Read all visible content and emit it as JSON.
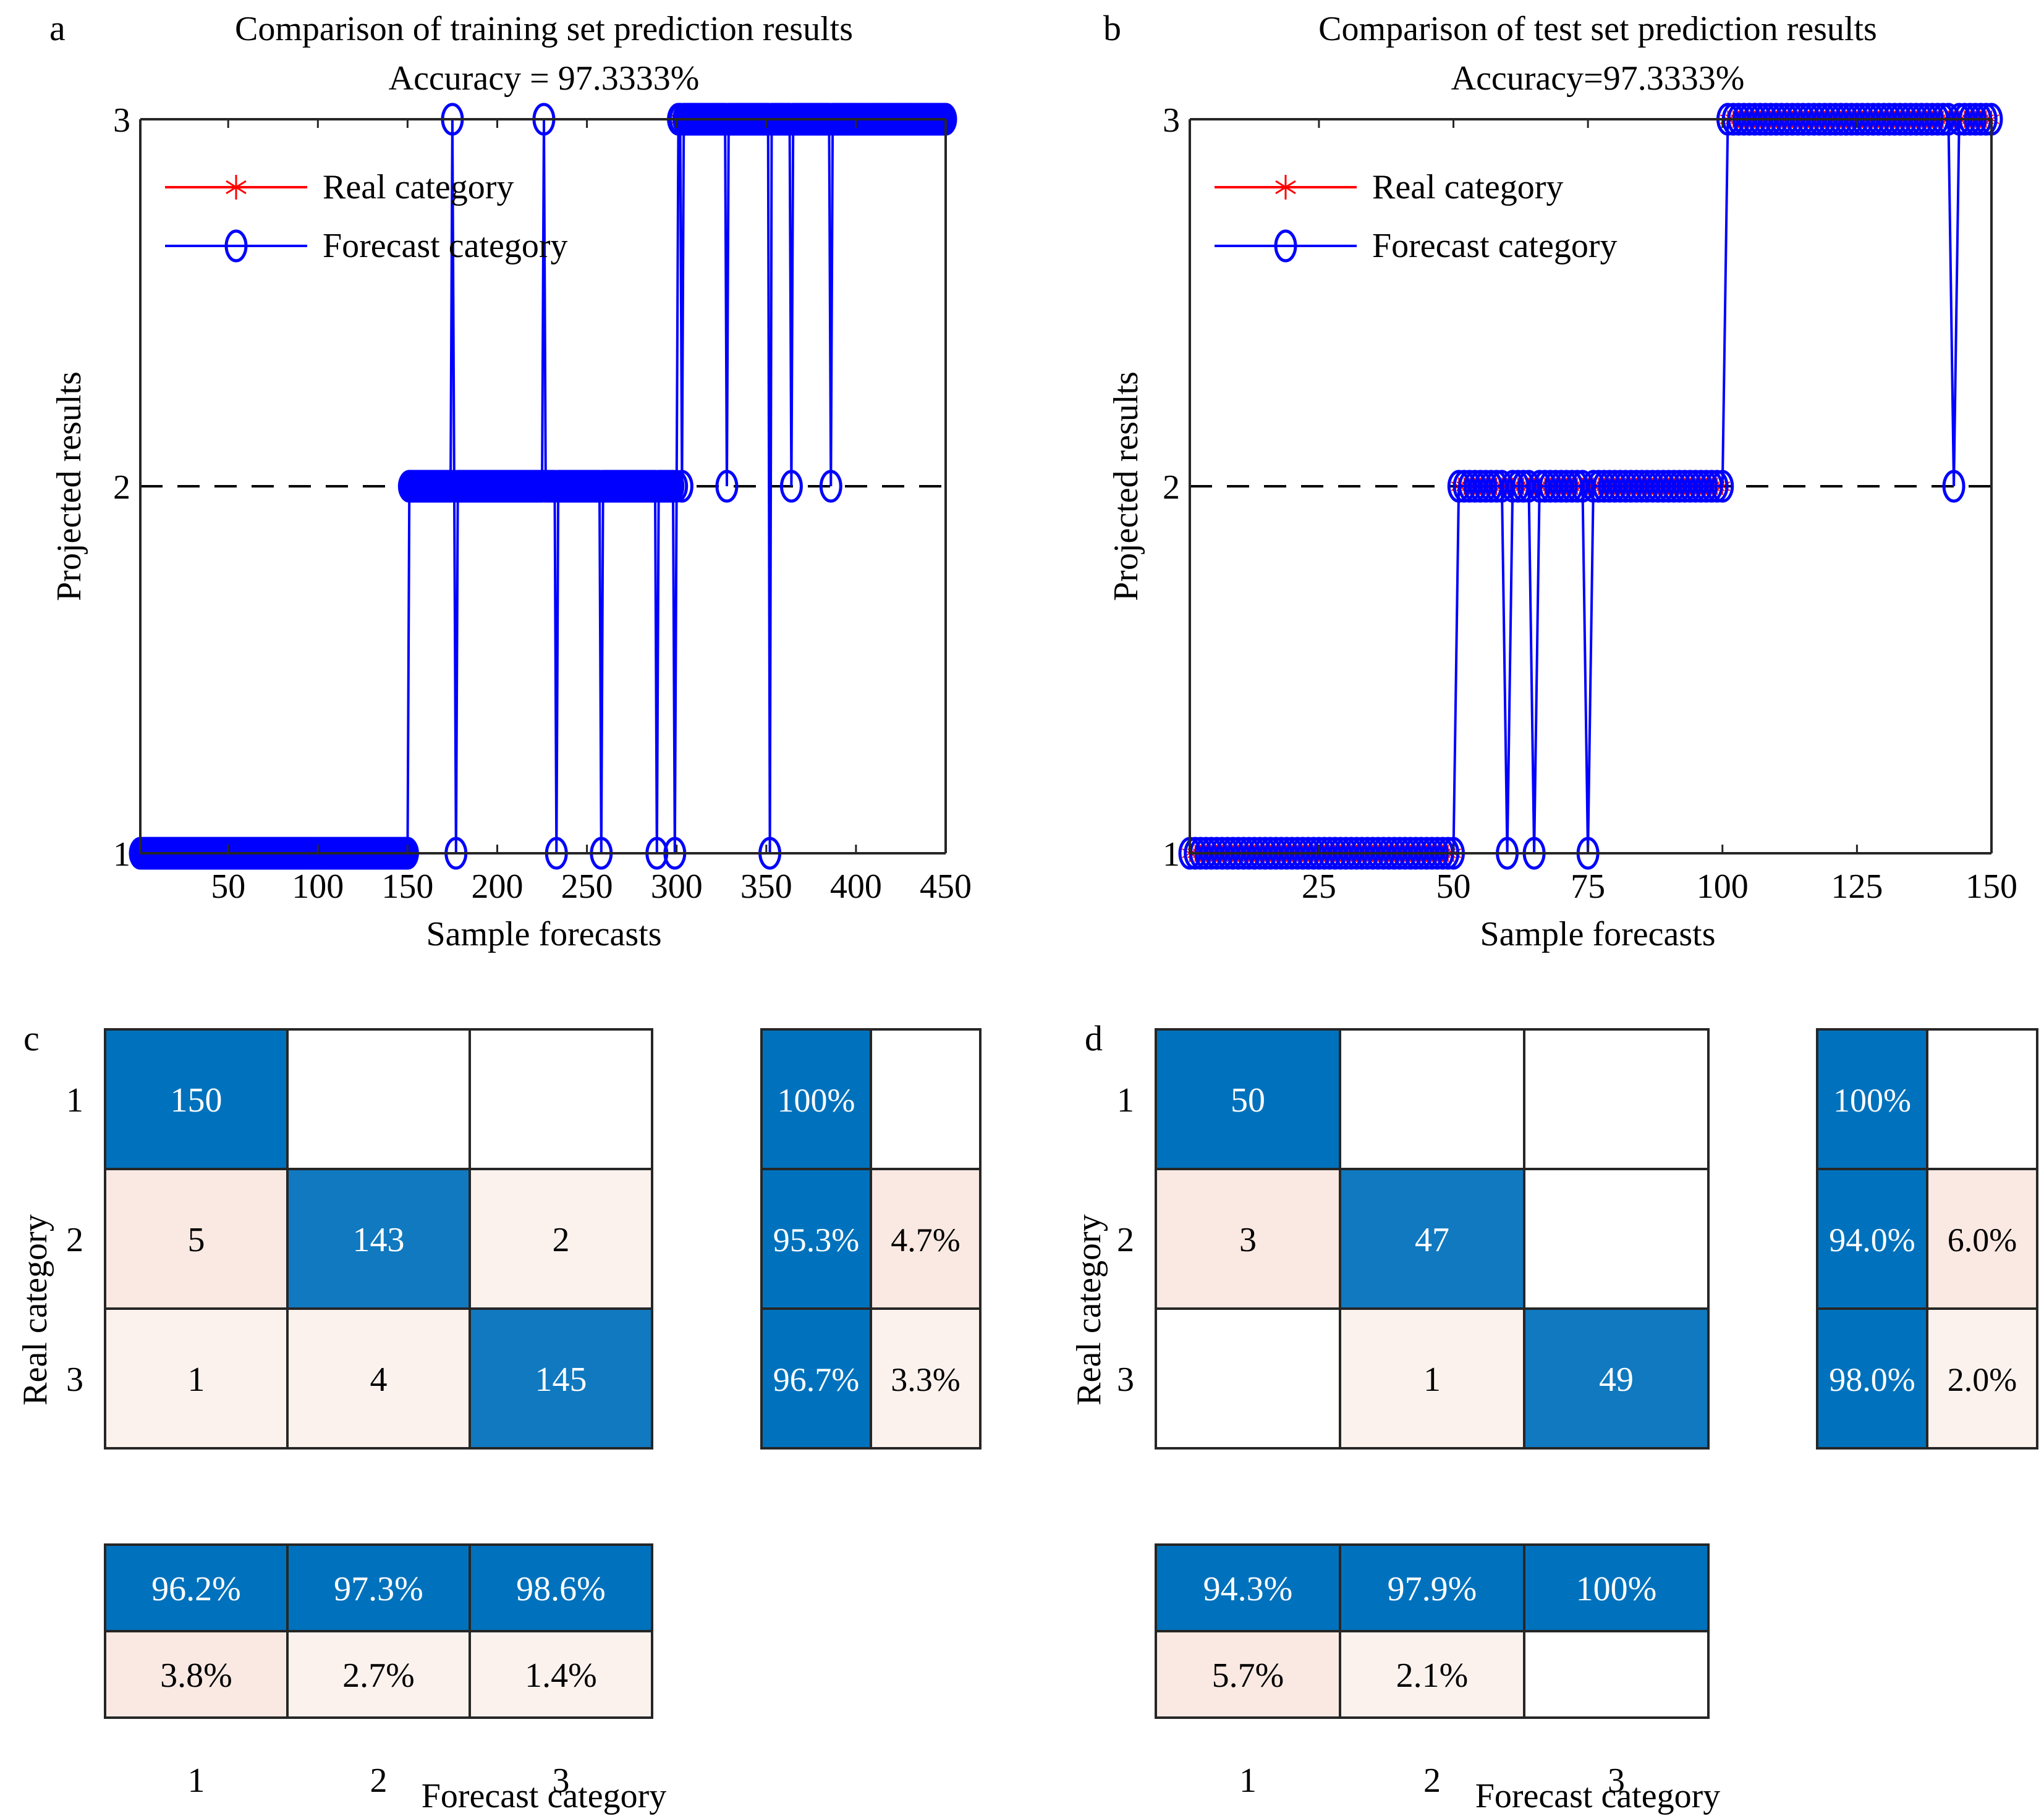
{
  "chart_data": [
    {
      "panel": "a",
      "type": "line",
      "title": "Comparison of training set prediction results",
      "subtitle": "Accuracy = 97.3333%",
      "xlabel": "Sample forecasts",
      "ylabel": "Projected results",
      "xlim": [
        1,
        450
      ],
      "ylim": [
        1,
        3
      ],
      "xticks": [
        50,
        100,
        150,
        200,
        250,
        300,
        350,
        400,
        450
      ],
      "yticks": [
        1,
        2,
        3
      ],
      "reference_line": {
        "y": 2,
        "style": "dashed",
        "color": "#000000"
      },
      "legend": {
        "placement": "top-left",
        "entries": [
          "Real category",
          "Forecast category"
        ]
      },
      "series": [
        {
          "name": "Real category",
          "color": "#ff0000",
          "marker": "asterisk",
          "segments": [
            {
              "from": 1,
              "to": 150,
              "value": 1
            },
            {
              "from": 151,
              "to": 300,
              "value": 2
            },
            {
              "from": 301,
              "to": 450,
              "value": 3
            }
          ]
        },
        {
          "name": "Forecast category",
          "color": "#0000ff",
          "marker": "circle",
          "segments": [
            {
              "from": 1,
              "to": 150,
              "value": 1
            },
            {
              "from": 151,
              "to": 300,
              "value": 2
            },
            {
              "from": 301,
              "to": 450,
              "value": 3
            }
          ],
          "misclassified": [
            {
              "x": 175,
              "value": 3
            },
            {
              "x": 226,
              "value": 3
            },
            {
              "x": 177,
              "value": 1
            },
            {
              "x": 233,
              "value": 1
            },
            {
              "x": 258,
              "value": 1
            },
            {
              "x": 289,
              "value": 1
            },
            {
              "x": 299,
              "value": 1
            },
            {
              "x": 352,
              "value": 1
            },
            {
              "x": 303,
              "value": 2
            },
            {
              "x": 328,
              "value": 2
            },
            {
              "x": 364,
              "value": 2
            },
            {
              "x": 386,
              "value": 2
            }
          ]
        }
      ]
    },
    {
      "panel": "b",
      "type": "line",
      "title": "Comparison of test set prediction results",
      "subtitle": "Accuracy=97.3333%",
      "xlabel": "Sample forecasts",
      "ylabel": "Projected results",
      "xlim": [
        1,
        150
      ],
      "ylim": [
        1,
        3
      ],
      "xticks": [
        25,
        50,
        75,
        100,
        125,
        150
      ],
      "yticks": [
        1,
        2,
        3
      ],
      "reference_line": {
        "y": 2,
        "style": "dashed",
        "color": "#000000"
      },
      "legend": {
        "placement": "top-left",
        "entries": [
          "Real category",
          "Forecast category"
        ]
      },
      "series": [
        {
          "name": "Real category",
          "color": "#ff0000",
          "marker": "asterisk",
          "segments": [
            {
              "from": 1,
              "to": 50,
              "value": 1
            },
            {
              "from": 51,
              "to": 100,
              "value": 2
            },
            {
              "from": 101,
              "to": 150,
              "value": 3
            }
          ]
        },
        {
          "name": "Forecast category",
          "color": "#0000ff",
          "marker": "circle",
          "segments": [
            {
              "from": 1,
              "to": 50,
              "value": 1
            },
            {
              "from": 51,
              "to": 100,
              "value": 2
            },
            {
              "from": 101,
              "to": 150,
              "value": 3
            }
          ],
          "misclassified": [
            {
              "x": 60,
              "value": 1
            },
            {
              "x": 65,
              "value": 1
            },
            {
              "x": 75,
              "value": 1
            },
            {
              "x": 143,
              "value": 2
            }
          ]
        }
      ]
    },
    {
      "panel": "c",
      "type": "heatmap",
      "xlabel": "Forecast category",
      "ylabel": "Real category",
      "categories": [
        "1",
        "2",
        "3"
      ],
      "matrix": [
        [
          150,
          null,
          null
        ],
        [
          5,
          143,
          2
        ],
        [
          1,
          4,
          145
        ]
      ],
      "row_summary": [
        [
          "100%",
          ""
        ],
        [
          "95.3%",
          "4.7%"
        ],
        [
          "96.7%",
          "3.3%"
        ]
      ],
      "col_summary": [
        [
          "96.2%",
          "97.3%",
          "98.6%"
        ],
        [
          "3.8%",
          "2.7%",
          "1.4%"
        ]
      ]
    },
    {
      "panel": "d",
      "type": "heatmap",
      "xlabel": "Forecast category",
      "ylabel": "Real category",
      "categories": [
        "1",
        "2",
        "3"
      ],
      "matrix": [
        [
          50,
          null,
          null
        ],
        [
          3,
          47,
          null
        ],
        [
          null,
          1,
          49
        ]
      ],
      "row_summary": [
        [
          "100%",
          ""
        ],
        [
          "94.0%",
          "6.0%"
        ],
        [
          "98.0%",
          "2.0%"
        ]
      ],
      "col_summary": [
        [
          "94.3%",
          "97.9%",
          "100%"
        ],
        [
          "5.7%",
          "2.1%",
          ""
        ]
      ]
    }
  ],
  "colors": {
    "correct": "#0072bd",
    "correct_light": "#1079c0",
    "error_strong": "#f9e9e2",
    "error_light": "#fbf2ee",
    "empty": "#ffffff",
    "real": "#ff0000",
    "forecast": "#0000ff"
  },
  "panel_labels": [
    "a",
    "b",
    "c",
    "d"
  ]
}
